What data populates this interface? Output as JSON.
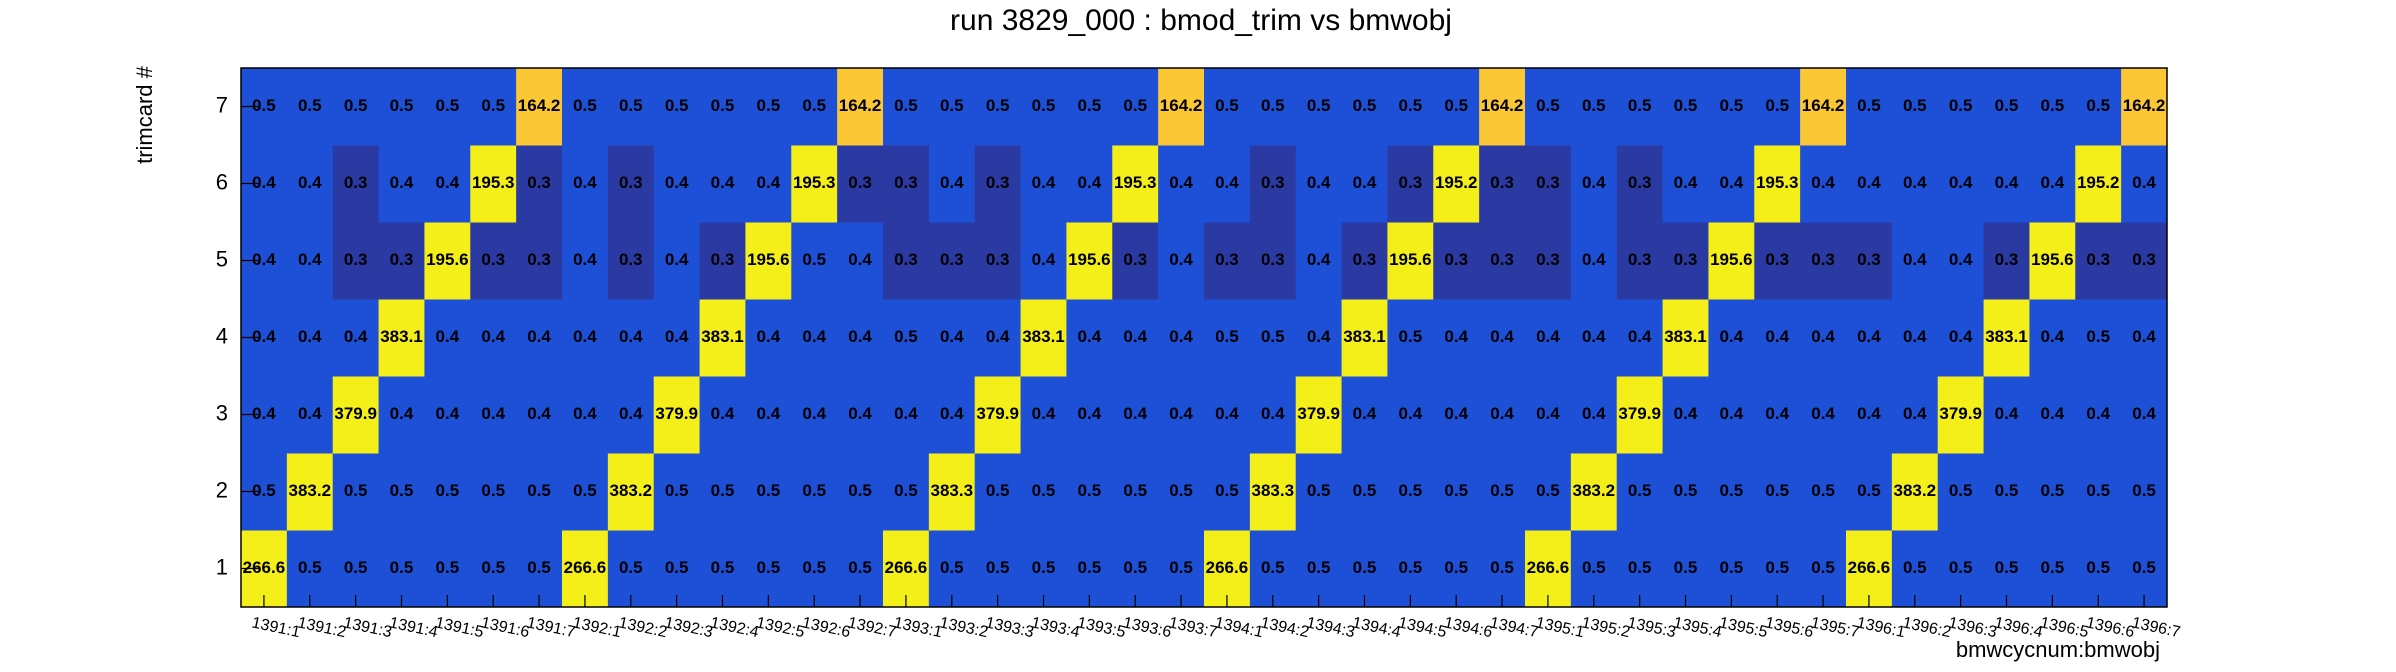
{
  "chart_data": {
    "type": "heatmap",
    "title": "run 3829_000 : bmod_trim vs bmwobj",
    "x_label": "bmwcycnum:bmwobj",
    "y_label": "trimcard #",
    "categories": [
      "1391:1",
      "1391:2",
      "1391:3",
      "1391:4",
      "1391:5",
      "1391:6",
      "1391:7",
      "1392:1",
      "1392:2",
      "1392:3",
      "1392:4",
      "1392:5",
      "1392:6",
      "1392:7",
      "1393:1",
      "1393:2",
      "1393:3",
      "1393:4",
      "1393:5",
      "1393:6",
      "1393:7",
      "1394:1",
      "1394:2",
      "1394:3",
      "1394:4",
      "1394:5",
      "1394:6",
      "1394:7",
      "1395:1",
      "1395:2",
      "1395:3",
      "1395:4",
      "1395:5",
      "1395:6",
      "1395:7",
      "1396:1",
      "1396:2",
      "1396:3",
      "1396:4",
      "1396:5",
      "1396:6",
      "1396:7"
    ],
    "y": [
      1,
      2,
      3,
      4,
      5,
      6,
      7
    ],
    "values": [
      [
        266.6,
        0.5,
        0.5,
        0.5,
        0.5,
        0.5,
        0.5,
        266.6,
        0.5,
        0.5,
        0.5,
        0.5,
        0.5,
        0.5,
        266.6,
        0.5,
        0.5,
        0.5,
        0.5,
        0.5,
        0.5,
        266.6,
        0.5,
        0.5,
        0.5,
        0.5,
        0.5,
        0.5,
        266.6,
        0.5,
        0.5,
        0.5,
        0.5,
        0.5,
        0.5,
        266.6,
        0.5,
        0.5,
        0.5,
        0.5,
        0.5,
        0.5
      ],
      [
        0.5,
        383.2,
        0.5,
        0.5,
        0.5,
        0.5,
        0.5,
        0.5,
        383.2,
        0.5,
        0.5,
        0.5,
        0.5,
        0.5,
        0.5,
        383.3,
        0.5,
        0.5,
        0.5,
        0.5,
        0.5,
        0.5,
        383.3,
        0.5,
        0.5,
        0.5,
        0.5,
        0.5,
        0.5,
        383.2,
        0.5,
        0.5,
        0.5,
        0.5,
        0.5,
        0.5,
        383.2,
        0.5,
        0.5,
        0.5,
        0.5,
        0.5
      ],
      [
        0.4,
        0.4,
        379.9,
        0.4,
        0.4,
        0.4,
        0.4,
        0.4,
        0.4,
        379.9,
        0.4,
        0.4,
        0.4,
        0.4,
        0.4,
        0.4,
        379.9,
        0.4,
        0.4,
        0.4,
        0.4,
        0.4,
        0.4,
        379.9,
        0.4,
        0.4,
        0.4,
        0.4,
        0.4,
        0.4,
        379.9,
        0.4,
        0.4,
        0.4,
        0.4,
        0.4,
        0.4,
        379.9,
        0.4,
        0.4,
        0.4,
        0.4
      ],
      [
        0.4,
        0.4,
        0.4,
        383.1,
        0.4,
        0.4,
        0.4,
        0.4,
        0.4,
        0.4,
        383.1,
        0.4,
        0.4,
        0.4,
        0.5,
        0.4,
        0.4,
        383.1,
        0.4,
        0.4,
        0.4,
        0.5,
        0.5,
        0.4,
        383.1,
        0.5,
        0.4,
        0.4,
        0.4,
        0.4,
        0.4,
        383.1,
        0.4,
        0.4,
        0.4,
        0.4,
        0.4,
        0.4,
        383.1,
        0.4,
        0.5,
        0.4
      ],
      [
        0.4,
        0.4,
        0.3,
        0.3,
        195.6,
        0.3,
        0.3,
        0.4,
        0.3,
        0.4,
        0.3,
        195.6,
        0.5,
        0.4,
        0.3,
        0.3,
        0.3,
        0.4,
        195.6,
        0.3,
        0.4,
        0.3,
        0.3,
        0.4,
        0.3,
        195.6,
        0.3,
        0.3,
        0.3,
        0.4,
        0.3,
        0.3,
        195.6,
        0.3,
        0.3,
        0.3,
        0.4,
        0.4,
        0.3,
        195.6,
        0.3,
        0.3
      ],
      [
        0.4,
        0.4,
        0.3,
        0.4,
        0.4,
        195.3,
        0.3,
        0.4,
        0.3,
        0.4,
        0.4,
        0.4,
        195.3,
        0.3,
        0.3,
        0.4,
        0.3,
        0.4,
        0.4,
        195.3,
        0.4,
        0.4,
        0.3,
        0.4,
        0.4,
        0.3,
        195.2,
        0.3,
        0.3,
        0.4,
        0.3,
        0.4,
        0.4,
        195.3,
        0.4,
        0.4,
        0.4,
        0.4,
        0.4,
        0.4,
        195.2,
        0.4
      ],
      [
        0.5,
        0.5,
        0.5,
        0.5,
        0.5,
        0.5,
        164.2,
        0.5,
        0.5,
        0.5,
        0.5,
        0.5,
        0.5,
        164.2,
        0.5,
        0.5,
        0.5,
        0.5,
        0.5,
        0.5,
        164.2,
        0.5,
        0.5,
        0.5,
        0.5,
        0.5,
        0.5,
        164.2,
        0.5,
        0.5,
        0.5,
        0.5,
        0.5,
        0.5,
        164.2,
        0.5,
        0.5,
        0.5,
        0.5,
        0.5,
        0.5,
        164.2
      ]
    ],
    "palette": [
      {
        "value": 0,
        "color": "#2b3aa3"
      },
      {
        "value": 0.35,
        "color": "#1d50d6"
      },
      {
        "value": 100,
        "color": "#fbc734"
      },
      {
        "value": 180,
        "color": "#f5ef19"
      }
    ]
  }
}
